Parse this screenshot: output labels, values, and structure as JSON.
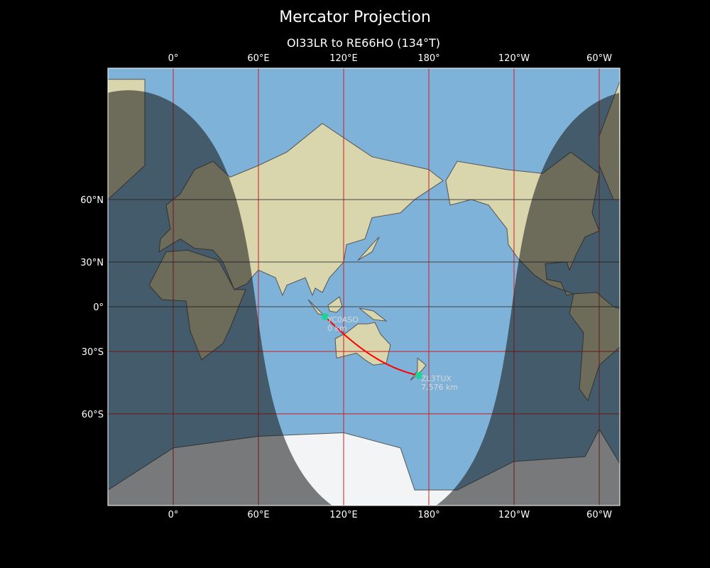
{
  "title": "Mercator Projection",
  "subtitle": "OI33LR to RE66HO (134°T)",
  "map": {
    "projection": "Mercator",
    "lon_range": [
      -46,
      314
    ],
    "lat_range": [
      -80,
      84
    ],
    "longitude_ticks": [
      {
        "lon": 0,
        "label": "0°"
      },
      {
        "lon": 60,
        "label": "60°E"
      },
      {
        "lon": 120,
        "label": "120°E"
      },
      {
        "lon": 180,
        "label": "180°"
      },
      {
        "lon": 240,
        "label": "120°W"
      },
      {
        "lon": 300,
        "label": "60°W"
      }
    ],
    "latitude_ticks": [
      {
        "lat": 60,
        "label": "60°N"
      },
      {
        "lat": 30,
        "label": "30°N"
      },
      {
        "lat": 0,
        "label": "0°"
      },
      {
        "lat": -30,
        "label": "30°S"
      },
      {
        "lat": -60,
        "label": "60°S"
      }
    ],
    "night_shading": {
      "subsolar_lon": 148.5,
      "declination": 8
    },
    "colors": {
      "ocean": "#7eb2d8",
      "land": "#d9d6ad",
      "path": "#ff0000",
      "station": "#1ed39a",
      "grid": "#cc1f1f"
    },
    "stations": [
      {
        "name": "YC0ASO",
        "distance": "0 km",
        "lon": 107,
        "lat": -7
      },
      {
        "name": "ZL3TUX",
        "distance": "7,576 km",
        "lon": 173,
        "lat": -43.5
      }
    ]
  }
}
